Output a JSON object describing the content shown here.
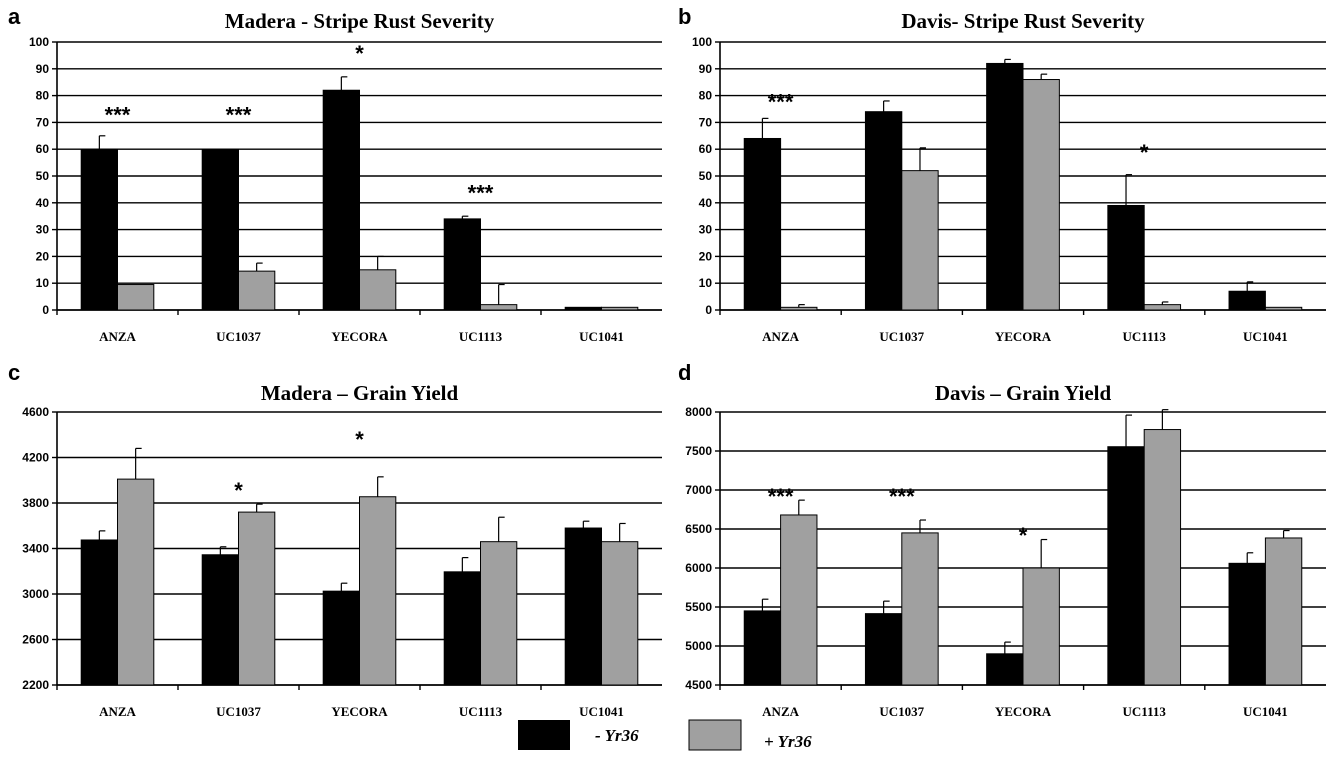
{
  "legend": [
    {
      "label": "- Yr36",
      "color": "#000000"
    },
    {
      "label": "+ Yr36",
      "color": "#a0a0a0"
    }
  ],
  "chart_data": [
    {
      "panel": "a",
      "type": "bar",
      "title": "Madera - Stripe Rust Severity",
      "categories": [
        "ANZA",
        "UC1037",
        "YECORA",
        "UC1113",
        "UC1041"
      ],
      "ylim": [
        0,
        100
      ],
      "yticks": [
        0,
        10,
        20,
        30,
        40,
        50,
        60,
        70,
        80,
        90,
        100
      ],
      "grid": true,
      "series": [
        {
          "name": "- Yr36",
          "color": "#000000",
          "values": [
            60,
            60,
            82,
            34,
            1
          ],
          "errors": [
            5,
            0,
            5,
            1,
            0
          ]
        },
        {
          "name": "+ Yr36",
          "color": "#a0a0a0",
          "values": [
            9.5,
            14.5,
            15,
            2,
            1
          ],
          "errors": [
            0,
            3,
            5,
            7.5,
            0
          ]
        }
      ],
      "annotations": [
        {
          "category": "ANZA",
          "text": "***",
          "y": 74
        },
        {
          "category": "UC1037",
          "text": "***",
          "y": 74
        },
        {
          "category": "YECORA",
          "text": "*",
          "y": 97
        },
        {
          "category": "UC1113",
          "text": "***",
          "y": 45
        }
      ]
    },
    {
      "panel": "b",
      "type": "bar",
      "title": "Davis- Stripe Rust Severity",
      "categories": [
        "ANZA",
        "UC1037",
        "YECORA",
        "UC1113",
        "UC1041"
      ],
      "ylim": [
        0,
        100
      ],
      "yticks": [
        0,
        10,
        20,
        30,
        40,
        50,
        60,
        70,
        80,
        90,
        100
      ],
      "grid": true,
      "series": [
        {
          "name": "- Yr36",
          "color": "#000000",
          "values": [
            64,
            74,
            92,
            39,
            7
          ],
          "errors": [
            7.5,
            4,
            1.5,
            11.5,
            3.5
          ]
        },
        {
          "name": "+ Yr36",
          "color": "#a0a0a0",
          "values": [
            1,
            52,
            86,
            2,
            1
          ],
          "errors": [
            1,
            8.5,
            2,
            1,
            0
          ]
        }
      ],
      "annotations": [
        {
          "category": "ANZA",
          "text": "***",
          "y": 79
        },
        {
          "category": "UC1113",
          "text": "*",
          "y": 60
        }
      ]
    },
    {
      "panel": "c",
      "type": "bar",
      "title": "Madera – Grain Yield",
      "categories": [
        "ANZA",
        "UC1037",
        "YECORA",
        "UC1113",
        "UC1041"
      ],
      "ylim": [
        2200,
        4600
      ],
      "yticks": [
        2200,
        2600,
        3000,
        3400,
        3800,
        4200,
        4600
      ],
      "grid": true,
      "series": [
        {
          "name": "- Yr36",
          "color": "#000000",
          "values": [
            3475,
            3345,
            3025,
            3195,
            3580
          ],
          "errors": [
            80,
            70,
            70,
            125,
            60
          ]
        },
        {
          "name": "+ Yr36",
          "color": "#a0a0a0",
          "values": [
            4010,
            3720,
            3855,
            3460,
            3460
          ],
          "errors": [
            270,
            70,
            175,
            215,
            160
          ]
        }
      ],
      "annotations": [
        {
          "category": "UC1037",
          "text": "*",
          "y": 3940
        },
        {
          "category": "YECORA",
          "text": "*",
          "y": 4390
        }
      ]
    },
    {
      "panel": "d",
      "type": "bar",
      "title": "Davis – Grain Yield",
      "categories": [
        "ANZA",
        "UC1037",
        "YECORA",
        "UC1113",
        "UC1041"
      ],
      "ylim": [
        4500,
        8000
      ],
      "yticks": [
        4500,
        5000,
        5500,
        6000,
        6500,
        7000,
        7500,
        8000
      ],
      "grid": true,
      "series": [
        {
          "name": "- Yr36",
          "color": "#000000",
          "values": [
            5450,
            5415,
            4900,
            7555,
            6060
          ],
          "errors": [
            150,
            160,
            150,
            405,
            135
          ]
        },
        {
          "name": "+ Yr36",
          "color": "#a0a0a0",
          "values": [
            6680,
            6450,
            6000,
            7775,
            6385
          ],
          "errors": [
            190,
            165,
            365,
            255,
            95
          ]
        }
      ],
      "annotations": [
        {
          "category": "ANZA",
          "text": "***",
          "y": 6960
        },
        {
          "category": "UC1037",
          "text": "***",
          "y": 6960
        },
        {
          "category": "YECORA",
          "text": "*",
          "y": 6460
        }
      ]
    }
  ]
}
